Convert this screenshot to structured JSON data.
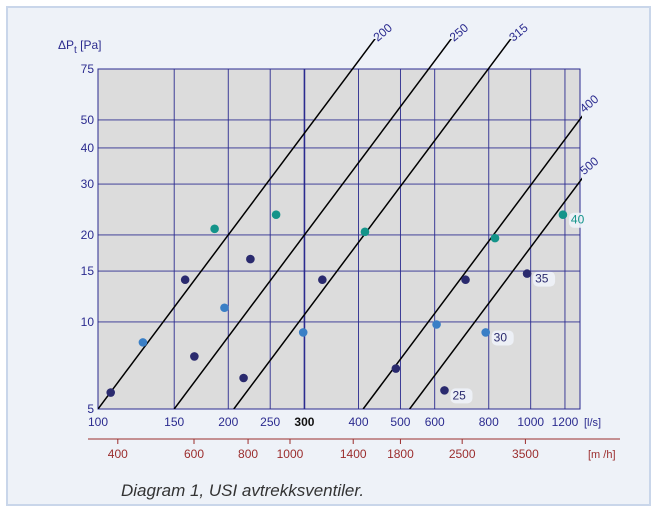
{
  "caption": "Diagram 1, USI avtrekksventiler.",
  "chart_data": {
    "type": "line",
    "y_axis": {
      "label_main": "ΔP",
      "label_sub": "t",
      "label_unit": " [Pa]",
      "scale": "log",
      "range": [
        5,
        75
      ],
      "ticks": [
        5,
        10,
        15,
        20,
        30,
        40,
        50,
        75
      ],
      "tick_labels": [
        "5",
        "10",
        "15",
        "20",
        "30",
        "40",
        "50",
        "75"
      ]
    },
    "x_axis": {
      "unit": "[l/s]",
      "scale": "log",
      "range": [
        100,
        1300
      ],
      "ticks": [
        100,
        150,
        200,
        250,
        300,
        400,
        500,
        600,
        800,
        1000,
        1200
      ],
      "tick_labels": [
        "100",
        "150",
        "200",
        "250",
        "300",
        "400",
        "500",
        "600",
        "800",
        "1000",
        "1200"
      ],
      "bold_tick": "300"
    },
    "x2_axis": {
      "unit": "[m  /h]",
      "ticks": [
        400,
        600,
        800,
        1000,
        1400,
        1800,
        2500,
        3500
      ],
      "tick_labels": [
        "400",
        "600",
        "800",
        "1000",
        "1400",
        "1800",
        "2500",
        "3500"
      ]
    },
    "grid": true,
    "series": [
      {
        "name": "200",
        "anchor": [
          100,
          5
        ],
        "slope": 2
      },
      {
        "name": "250",
        "anchor": [
          150,
          5
        ],
        "slope": 2
      },
      {
        "name": "315",
        "anchor": [
          206,
          5
        ],
        "slope": 2
      },
      {
        "name": "400",
        "anchor": [
          410,
          5
        ],
        "slope": 2
      },
      {
        "name": "500",
        "anchor": [
          525,
          5
        ],
        "slope": 2
      }
    ],
    "points": [
      {
        "x": 107,
        "y": 5.7,
        "c": "#2a2a6e"
      },
      {
        "x": 127,
        "y": 8.5,
        "c": "#3a7fc6"
      },
      {
        "x": 159,
        "y": 14,
        "c": "#2a2a6e"
      },
      {
        "x": 186,
        "y": 21,
        "c": "#14948a"
      },
      {
        "x": 167,
        "y": 7.6,
        "c": "#2a2a6e"
      },
      {
        "x": 196,
        "y": 11.2,
        "c": "#3a7fc6"
      },
      {
        "x": 225,
        "y": 16.5,
        "c": "#2a2a6e"
      },
      {
        "x": 258,
        "y": 23.5,
        "c": "#14948a"
      },
      {
        "x": 217,
        "y": 6.4,
        "c": "#2a2a6e"
      },
      {
        "x": 298,
        "y": 9.2,
        "c": "#3a7fc6"
      },
      {
        "x": 330,
        "y": 14,
        "c": "#2a2a6e"
      },
      {
        "x": 414,
        "y": 20.5,
        "c": "#14948a"
      },
      {
        "x": 488,
        "y": 6.9,
        "c": "#2a2a6e"
      },
      {
        "x": 606,
        "y": 9.8,
        "c": "#3a7fc6"
      },
      {
        "x": 707,
        "y": 14,
        "c": "#2a2a6e"
      },
      {
        "x": 827,
        "y": 19.5,
        "c": "#14948a"
      },
      {
        "x": 632,
        "y": 5.8,
        "c": "#2a2a6e"
      },
      {
        "x": 787,
        "y": 9.2,
        "c": "#3a7fc6"
      },
      {
        "x": 981,
        "y": 14.7,
        "c": "#2a2a6e"
      },
      {
        "x": 1187,
        "y": 23.5,
        "c": "#14948a"
      }
    ],
    "point_labels": [
      {
        "text": "25",
        "x": 632,
        "y": 5.8,
        "c": "#2a2a6e"
      },
      {
        "text": "30",
        "x": 787,
        "y": 9.2,
        "c": "#2a2a6e"
      },
      {
        "text": "35",
        "x": 981,
        "y": 14.7,
        "c": "#2a2a6e"
      },
      {
        "text": "40",
        "x": 1187,
        "y": 23.5,
        "c": "#14948a"
      }
    ],
    "colors": {
      "plot_bg": "#dcdcdc",
      "grid": "#2b2b8f",
      "axis_text": "#2b2b8f",
      "x2_axis": "#9b2d2d",
      "line": "#000000"
    }
  }
}
